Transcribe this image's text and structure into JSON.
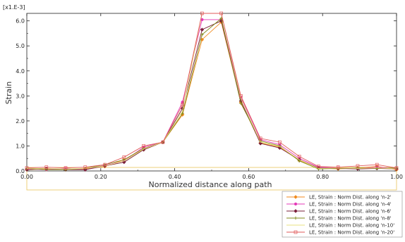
{
  "chart_data": {
    "type": "line",
    "title": "",
    "xlabel": "Normalized distance along path",
    "ylabel": "Strain",
    "y_multiplier_label": "[x1.E-3]",
    "xlim": [
      0.0,
      1.0
    ],
    "ylim": [
      0.0,
      6.3
    ],
    "x_ticks": [
      "0.00",
      "0.20",
      "0.40",
      "0.60",
      "0.80",
      "1.00"
    ],
    "y_ticks": [
      "0.0",
      "1.0",
      "2.0",
      "3.0",
      "4.0",
      "5.0",
      "6.0"
    ],
    "grid": false,
    "legend_position": "bottom-right",
    "x": [
      0.0,
      0.053,
      0.105,
      0.158,
      0.211,
      0.263,
      0.316,
      0.368,
      0.421,
      0.474,
      0.526,
      0.579,
      0.632,
      0.684,
      0.737,
      0.789,
      0.842,
      0.895,
      0.947,
      1.0
    ],
    "series": [
      {
        "name": "LE, Strain : Norm Dist. along 'n-2'",
        "color": "#f08a1c",
        "marker": "diamond",
        "values": [
          0.05,
          0.08,
          0.06,
          0.08,
          0.18,
          0.45,
          0.85,
          1.15,
          2.25,
          5.25,
          5.95,
          2.75,
          1.12,
          0.95,
          0.42,
          0.12,
          0.08,
          0.12,
          0.18,
          0.05
        ]
      },
      {
        "name": "LE, Strain : Norm Dist. along 'n-4'",
        "color": "#e53ab8",
        "marker": "circle",
        "values": [
          0.08,
          0.05,
          0.1,
          0.05,
          0.22,
          0.4,
          0.95,
          1.15,
          2.75,
          6.05,
          6.05,
          2.95,
          1.25,
          1.05,
          0.5,
          0.15,
          0.12,
          0.1,
          0.15,
          0.1
        ]
      },
      {
        "name": "LE, Strain : Norm Dist. along 'n-6'",
        "color": "#7a1f3a",
        "marker": "diamond",
        "values": [
          0.05,
          0.1,
          0.05,
          0.05,
          0.2,
          0.35,
          0.85,
          1.15,
          2.5,
          5.65,
          6.0,
          2.8,
          1.1,
          0.92,
          0.45,
          0.12,
          0.1,
          0.08,
          0.1,
          0.08
        ]
      },
      {
        "name": "LE, Strain : Norm Dist. along 'n-8'",
        "color": "#7f8a1a",
        "marker": "cross",
        "values": [
          0.1,
          0.05,
          0.05,
          0.1,
          0.25,
          0.45,
          0.9,
          1.15,
          2.3,
          5.45,
          6.1,
          2.7,
          1.2,
          1.0,
          0.4,
          0.08,
          0.1,
          0.12,
          0.1,
          0.12
        ]
      },
      {
        "name": "LE, Strain : Norm Dist. along 'n-10'",
        "color": "#e8e080",
        "marker": "none",
        "values": [
          0.1,
          0.1,
          0.08,
          0.1,
          0.2,
          0.4,
          0.88,
          1.15,
          2.4,
          6.3,
          6.3,
          2.9,
          1.15,
          0.98,
          0.45,
          0.1,
          0.12,
          0.1,
          0.12,
          0.08
        ]
      },
      {
        "name": "LE, Strain : Norm Dist. along 'n-20'",
        "color": "#e05858",
        "marker": "square",
        "values": [
          0.12,
          0.15,
          0.12,
          0.15,
          0.25,
          0.55,
          1.0,
          1.15,
          2.65,
          6.3,
          6.3,
          3.0,
          1.3,
          1.15,
          0.58,
          0.18,
          0.15,
          0.2,
          0.25,
          0.12
        ]
      }
    ]
  }
}
